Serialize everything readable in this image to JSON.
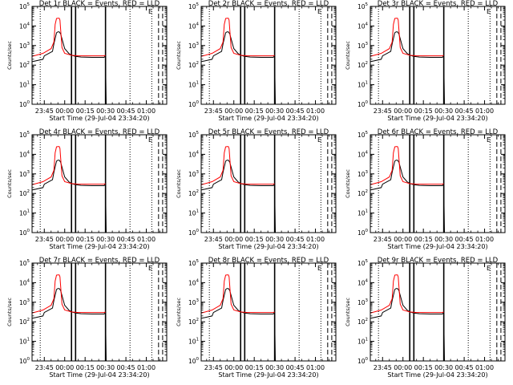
{
  "window_colors": {
    "background": "#ffffff",
    "events": "#000000",
    "lld": "#ff0000"
  },
  "chart_data": {
    "type": "line",
    "layout": "3x3 grid",
    "x_tick_labels": [
      "23:45",
      "00:00",
      "00:15",
      "00:30",
      "00:45",
      "01:00"
    ],
    "x_tick_minutes": [
      -15,
      0,
      15,
      30,
      45,
      60
    ],
    "xlim_minutes": [
      -24,
      75
    ],
    "xlabel": "Start Time (29-Jul-04 23:34:20)",
    "ylabel": "Counts/sec",
    "y_scale": "log",
    "ylim": [
      1,
      100000
    ],
    "y_tick_values": [
      1,
      10,
      100,
      1000,
      10000,
      100000
    ],
    "y_tick_labels": [
      {
        "base": "10",
        "exp": "0"
      },
      {
        "base": "10",
        "exp": "1"
      },
      {
        "base": "10",
        "exp": "2"
      },
      {
        "base": "10",
        "exp": "3"
      },
      {
        "base": "10",
        "exp": "4"
      },
      {
        "base": "10",
        "exp": "5"
      }
    ],
    "legend_top_right": "E",
    "grid": false,
    "solid_vertical_markers": [
      5,
      8,
      30
    ],
    "dotted_vertical_markers": [
      -18,
      48,
      64
    ],
    "dashed_vertical_markers": [
      69,
      72
    ],
    "panels": [
      {
        "title": "Det 1r BLACK = Events, RED = LLD"
      },
      {
        "title": "Det 2r BLACK = Events, RED = LLD"
      },
      {
        "title": "Det 3r BLACK = Events, RED = LLD"
      },
      {
        "title": "Det 4r BLACK = Events, RED = LLD"
      },
      {
        "title": "Det 5r BLACK = Events, RED = LLD"
      },
      {
        "title": "Det 6r BLACK = Events, RED = LLD"
      },
      {
        "title": "Det 7r BLACK = Events, RED = LLD"
      },
      {
        "title": "Det 8r BLACK = Events, RED = LLD"
      },
      {
        "title": "Det 9r BLACK = Events, RED = LLD"
      }
    ],
    "series": [
      {
        "name": "Events",
        "color": "#000000",
        "x": [
          -24,
          -16,
          -15,
          -9,
          -8,
          -6,
          -5,
          -4,
          -3,
          0,
          3,
          5,
          8,
          12,
          20,
          29,
          30,
          30.5
        ],
        "y": [
          150,
          200,
          300,
          500,
          1200,
          4500,
          5000,
          5000,
          4000,
          700,
          400,
          320,
          280,
          260,
          250,
          250,
          300,
          1
        ]
      },
      {
        "name": "LLD",
        "color": "#ff0000",
        "x": [
          -24,
          -16,
          -10,
          -8,
          -7,
          -6,
          -5,
          -4,
          -3.5,
          -2,
          0,
          5,
          10,
          20,
          29,
          30
        ],
        "y": [
          280,
          400,
          700,
          1500,
          12000,
          24000,
          25000,
          25000,
          20000,
          800,
          400,
          320,
          300,
          300,
          300,
          320
        ]
      }
    ]
  }
}
